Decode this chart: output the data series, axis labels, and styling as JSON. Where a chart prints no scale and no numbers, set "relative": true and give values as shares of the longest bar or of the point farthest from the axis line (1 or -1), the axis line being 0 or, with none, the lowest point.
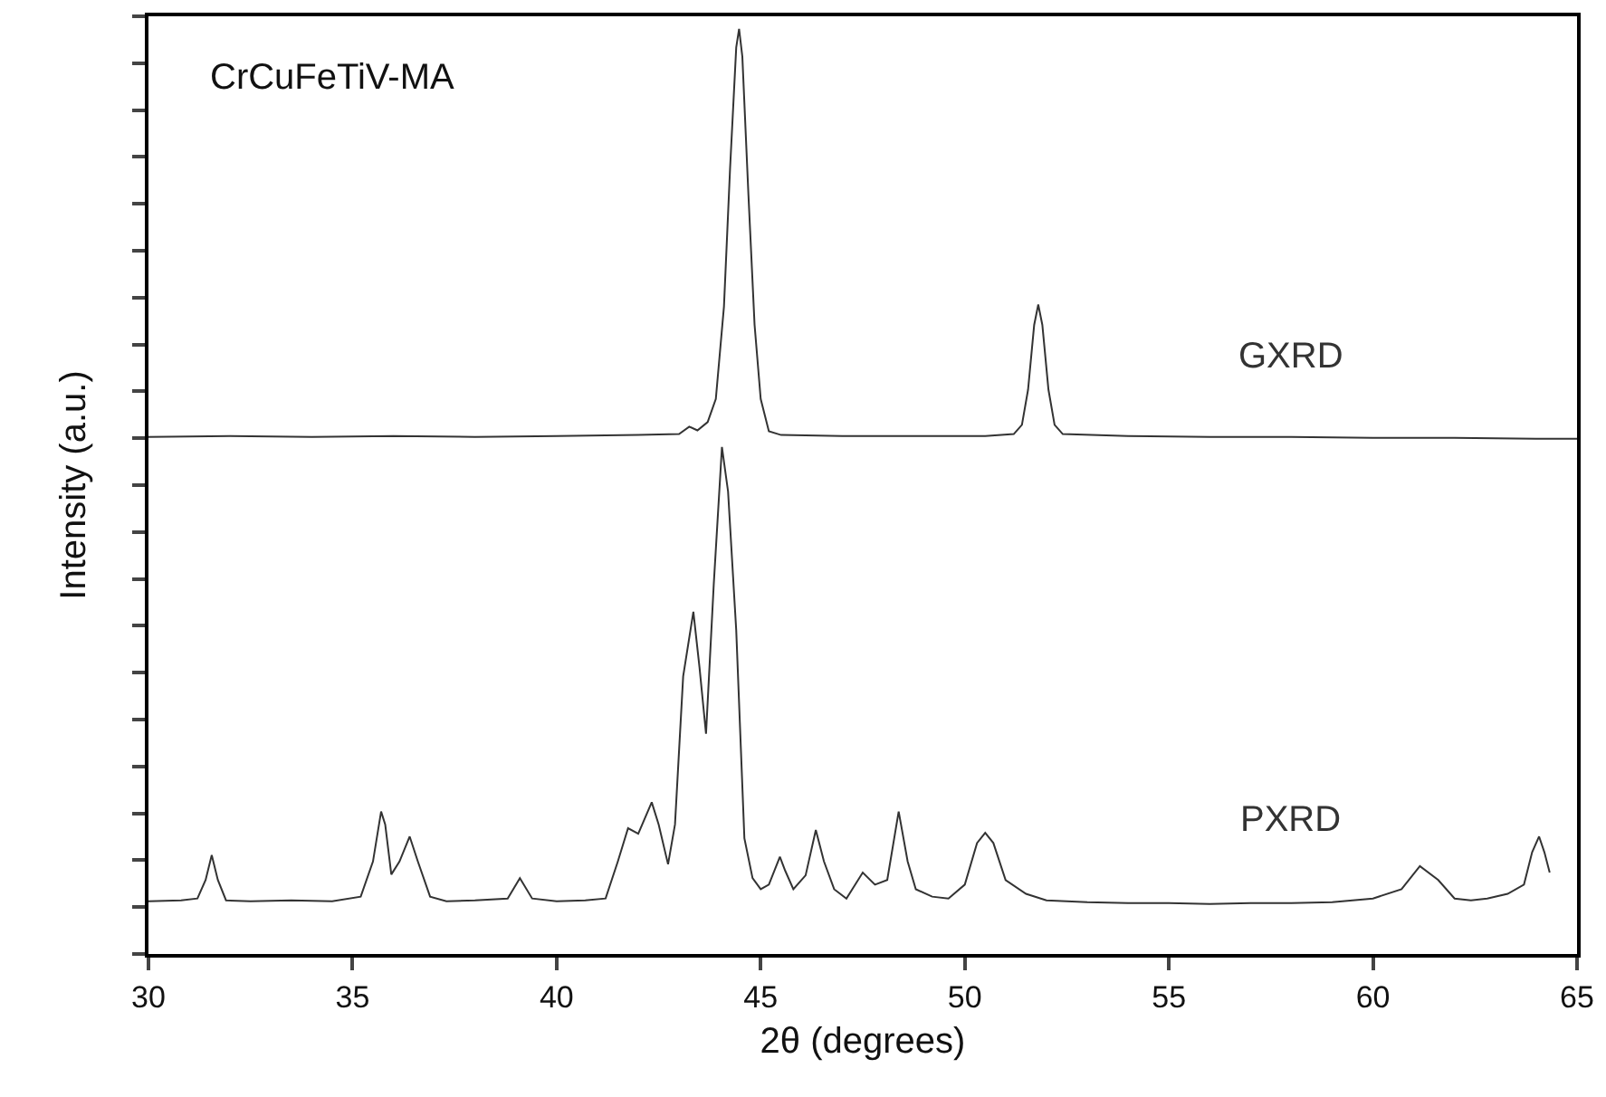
{
  "chart_data": {
    "type": "line",
    "relative": true,
    "xlabel": "2θ (degrees)",
    "ylabel": "Intensity (a.u.)",
    "xlim": [
      30,
      65
    ],
    "xticks": [
      30,
      35,
      40,
      45,
      50,
      55,
      60,
      65
    ],
    "tick_labels": "x",
    "annotations": [
      "CrCuFeTiV-MA"
    ],
    "series": [
      {
        "name": "GXRD",
        "color": "#333333",
        "x": [
          30,
          32,
          34,
          36,
          38,
          40,
          42,
          43.0,
          43.25,
          43.45,
          43.7,
          43.9,
          44.1,
          44.25,
          44.4,
          44.47,
          44.55,
          44.7,
          44.85,
          45.0,
          45.2,
          45.5,
          47,
          49,
          50.5,
          51.2,
          51.4,
          51.55,
          51.7,
          51.8,
          51.9,
          52.05,
          52.2,
          52.4,
          54,
          56,
          58,
          60,
          62,
          64,
          65
        ],
        "values": [
          0.559,
          0.56,
          0.559,
          0.56,
          0.559,
          0.56,
          0.561,
          0.562,
          0.57,
          0.566,
          0.575,
          0.6,
          0.7,
          0.85,
          0.98,
          1.0,
          0.97,
          0.82,
          0.68,
          0.6,
          0.565,
          0.561,
          0.56,
          0.56,
          0.56,
          0.562,
          0.572,
          0.61,
          0.68,
          0.702,
          0.68,
          0.61,
          0.572,
          0.562,
          0.56,
          0.559,
          0.559,
          0.558,
          0.558,
          0.557,
          0.557
        ]
      },
      {
        "name": "PXRD",
        "color": "#333333",
        "x": [
          30,
          30.8,
          31.2,
          31.4,
          31.55,
          31.7,
          31.9,
          32.5,
          33.5,
          34.5,
          35.2,
          35.5,
          35.7,
          35.8,
          35.95,
          36.15,
          36.4,
          36.6,
          36.9,
          37.3,
          38,
          38.8,
          39.1,
          39.4,
          40,
          40.7,
          41.2,
          41.5,
          41.75,
          42.0,
          42.33,
          42.5,
          42.73,
          42.9,
          43.1,
          43.35,
          43.5,
          43.66,
          43.85,
          44.05,
          44.2,
          44.4,
          44.6,
          44.8,
          45.0,
          45.2,
          45.47,
          45.6,
          45.8,
          46.1,
          46.35,
          46.55,
          46.8,
          47.1,
          47.5,
          47.8,
          48.1,
          48.38,
          48.6,
          48.8,
          49.2,
          49.6,
          50.0,
          50.3,
          50.5,
          50.7,
          51.0,
          51.5,
          52,
          53,
          54,
          55,
          56,
          57,
          58,
          59,
          60,
          60.7,
          61.15,
          61.6,
          62.0,
          62.4,
          62.8,
          63.3,
          63.7,
          63.9,
          64.07,
          64.2,
          64.33
        ],
        "values": [
          0.057,
          0.058,
          0.06,
          0.08,
          0.107,
          0.08,
          0.058,
          0.057,
          0.058,
          0.057,
          0.062,
          0.1,
          0.154,
          0.14,
          0.086,
          0.1,
          0.127,
          0.1,
          0.062,
          0.057,
          0.058,
          0.06,
          0.082,
          0.06,
          0.057,
          0.058,
          0.06,
          0.1,
          0.136,
          0.13,
          0.164,
          0.14,
          0.097,
          0.14,
          0.3,
          0.37,
          0.31,
          0.238,
          0.4,
          0.548,
          0.5,
          0.35,
          0.125,
          0.082,
          0.07,
          0.075,
          0.105,
          0.09,
          0.07,
          0.085,
          0.134,
          0.1,
          0.07,
          0.06,
          0.088,
          0.075,
          0.08,
          0.154,
          0.1,
          0.07,
          0.062,
          0.06,
          0.075,
          0.12,
          0.131,
          0.12,
          0.08,
          0.065,
          0.058,
          0.056,
          0.055,
          0.055,
          0.054,
          0.055,
          0.055,
          0.056,
          0.06,
          0.07,
          0.095,
          0.08,
          0.06,
          0.058,
          0.06,
          0.065,
          0.075,
          0.11,
          0.127,
          0.11,
          0.088
        ]
      }
    ]
  }
}
